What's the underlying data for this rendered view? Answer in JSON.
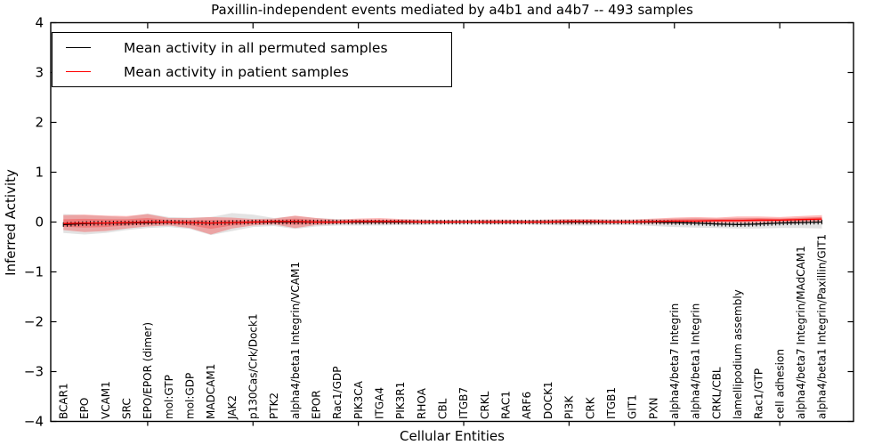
{
  "chart_data": {
    "type": "line",
    "title": "Paxillin-independent events mediated by a4b1 and a4b7 -- 493 samples",
    "xlabel": "Cellular Entities",
    "ylabel": "Inferred Activity",
    "ylim": [
      -4,
      4
    ],
    "xlim": [
      0.4,
      38.5
    ],
    "grid": false,
    "ytick_values": [
      4,
      3,
      2,
      1,
      0,
      -1,
      -2,
      -3,
      -4
    ],
    "ytick_labels": [
      "4",
      "3",
      "2",
      "1",
      "0",
      "−1",
      "−2",
      "−3",
      "−4"
    ],
    "x_major_ticks": [
      5,
      10,
      15,
      20,
      25,
      30,
      35
    ],
    "categories": [
      "BCAR1",
      "EPO",
      "VCAM1",
      "SRC",
      "EPO/EPOR (dimer)",
      "mol:GTP",
      "mol:GDP",
      "MADCAM1",
      "JAK2",
      "p130Cas/Crk/Dock1",
      "PTK2",
      "alpha4/beta1 Integrin/VCAM1",
      "EPOR",
      "Rac1/GDP",
      "PIK3CA",
      "ITGA4",
      "PIK3R1",
      "RHOA",
      "CBL",
      "ITGB7",
      "CRKL",
      "RAC1",
      "ARF6",
      "DOCK1",
      "PI3K",
      "CRK",
      "ITGB1",
      "GIT1",
      "PXN",
      "alpha4/beta7 Integrin",
      "alpha4/beta1 Integrin",
      "CRKL/CBL",
      "lamellipodium assembly",
      "Rac1/GTP",
      "cell adhesion",
      "alpha4/beta7 Integrin/MAdCAM1",
      "alpha4/beta1 Integrin/Paxillin/GIT1"
    ],
    "legend": {
      "position": "upper left",
      "entries": [
        "Mean activity in all permuted samples",
        "Mean activity in patient samples"
      ]
    },
    "series": [
      {
        "name": "Mean activity in all permuted samples",
        "color": "#000000",
        "values": [
          -0.05,
          -0.03,
          -0.02,
          -0.02,
          -0.01,
          0,
          -0.01,
          -0.02,
          -0.01,
          0,
          0,
          0,
          0,
          0,
          0,
          0,
          0,
          0,
          0,
          0,
          0,
          0,
          0,
          0,
          0,
          0,
          0,
          0,
          0,
          -0.01,
          -0.02,
          -0.04,
          -0.05,
          -0.04,
          -0.02,
          -0.01,
          0
        ]
      },
      {
        "name": "Mean activity in patient samples",
        "color": "#ff0000",
        "values": [
          -0.03,
          -0.02,
          -0.02,
          -0.01,
          0,
          0,
          -0.01,
          -0.02,
          -0.01,
          0,
          0.01,
          0.01,
          0,
          0,
          0.01,
          0.01,
          0.01,
          0,
          0,
          0,
          0,
          0,
          0,
          0,
          0.01,
          0.01,
          0,
          0,
          0.01,
          0.02,
          0.02,
          0.03,
          0.03,
          0.04,
          0.04,
          0.05,
          0.06
        ]
      }
    ],
    "bands": [
      {
        "name": "permuted samples range",
        "color": "#c8c8c8",
        "opacity": 0.5,
        "upper": [
          0.16,
          0.14,
          0.12,
          0.1,
          0.17,
          0.1,
          0.09,
          0.1,
          0.18,
          0.15,
          0.08,
          0.12,
          0.08,
          0.06,
          0.05,
          0.05,
          0.05,
          0.05,
          0.04,
          0.04,
          0.04,
          0.04,
          0.04,
          0.05,
          0.05,
          0.05,
          0.05,
          0.05,
          0.06,
          0.07,
          0.08,
          0.07,
          0.08,
          0.08,
          0.07,
          0.09,
          0.1
        ],
        "lower": [
          -0.22,
          -0.25,
          -0.22,
          -0.16,
          -0.12,
          -0.1,
          -0.14,
          -0.26,
          -0.18,
          -0.1,
          -0.08,
          -0.14,
          -0.09,
          -0.07,
          -0.07,
          -0.07,
          -0.06,
          -0.06,
          -0.05,
          -0.05,
          -0.05,
          -0.05,
          -0.05,
          -0.06,
          -0.07,
          -0.07,
          -0.06,
          -0.06,
          -0.08,
          -0.1,
          -0.11,
          -0.12,
          -0.13,
          -0.13,
          -0.12,
          -0.12,
          -0.13
        ]
      },
      {
        "name": "patient samples range",
        "color": "#ff0000",
        "opacity": 0.28,
        "upper": [
          0.14,
          0.15,
          0.13,
          0.12,
          0.16,
          0.08,
          0.08,
          0.1,
          0.09,
          0.06,
          0.07,
          0.13,
          0.08,
          0.05,
          0.07,
          0.08,
          0.06,
          0.05,
          0.04,
          0.04,
          0.05,
          0.05,
          0.04,
          0.05,
          0.06,
          0.06,
          0.05,
          0.05,
          0.07,
          0.09,
          0.1,
          0.09,
          0.11,
          0.11,
          0.1,
          0.12,
          0.14
        ],
        "lower": [
          -0.16,
          -0.2,
          -0.18,
          -0.13,
          -0.09,
          -0.07,
          -0.12,
          -0.25,
          -0.13,
          -0.07,
          -0.05,
          -0.12,
          -0.06,
          -0.04,
          -0.03,
          -0.03,
          -0.03,
          -0.03,
          -0.03,
          -0.02,
          -0.03,
          -0.03,
          -0.03,
          -0.03,
          -0.03,
          -0.03,
          -0.03,
          -0.03,
          -0.03,
          -0.03,
          -0.03,
          -0.02,
          -0.02,
          -0.02,
          -0.01,
          0.0,
          0.01
        ]
      }
    ]
  }
}
